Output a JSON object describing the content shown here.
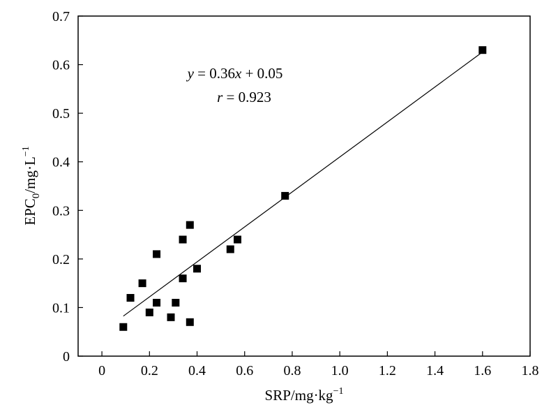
{
  "chart_data": {
    "type": "scatter",
    "xlabel": "SRP/mg·kg",
    "xlabel_sup": "−1",
    "ylabel_main": "EPC",
    "ylabel_sub": "0",
    "ylabel_unit": "/mg·L",
    "ylabel_sup": "−1",
    "xlim": [
      -0.1,
      1.8
    ],
    "ylim": [
      0,
      0.7
    ],
    "xticks": [
      "0",
      "0.2",
      "0.4",
      "0.6",
      "0.8",
      "1.0",
      "1.2",
      "1.4",
      "1.6",
      "1.8"
    ],
    "xtick_values": [
      0,
      0.2,
      0.4,
      0.6,
      0.8,
      1.0,
      1.2,
      1.4,
      1.6,
      1.8
    ],
    "yticks": [
      "0",
      "0.1",
      "0.2",
      "0.3",
      "0.4",
      "0.5",
      "0.6",
      "0.7"
    ],
    "ytick_values": [
      0,
      0.1,
      0.2,
      0.3,
      0.4,
      0.5,
      0.6,
      0.7
    ],
    "points": [
      {
        "x": 0.09,
        "y": 0.06
      },
      {
        "x": 0.12,
        "y": 0.12
      },
      {
        "x": 0.17,
        "y": 0.15
      },
      {
        "x": 0.2,
        "y": 0.09
      },
      {
        "x": 0.23,
        "y": 0.21
      },
      {
        "x": 0.23,
        "y": 0.11
      },
      {
        "x": 0.29,
        "y": 0.08
      },
      {
        "x": 0.31,
        "y": 0.11
      },
      {
        "x": 0.34,
        "y": 0.24
      },
      {
        "x": 0.34,
        "y": 0.16
      },
      {
        "x": 0.37,
        "y": 0.27
      },
      {
        "x": 0.37,
        "y": 0.07
      },
      {
        "x": 0.4,
        "y": 0.18
      },
      {
        "x": 0.54,
        "y": 0.22
      },
      {
        "x": 0.57,
        "y": 0.24
      },
      {
        "x": 0.77,
        "y": 0.33
      },
      {
        "x": 1.6,
        "y": 0.63
      }
    ],
    "fit_line": {
      "slope": 0.36,
      "intercept": 0.05,
      "x_from": 0.09,
      "x_to": 1.6
    },
    "equation": {
      "y_var": "y",
      "rest": " = 0.36",
      "x_var": "x",
      "tail": " + 0.05"
    },
    "correlation": {
      "r_var": "r",
      "rest": " = 0.923"
    },
    "grid": false,
    "legend": "none",
    "colors": {
      "marker": "#000000",
      "line": "#000000",
      "axis": "#000000"
    }
  }
}
